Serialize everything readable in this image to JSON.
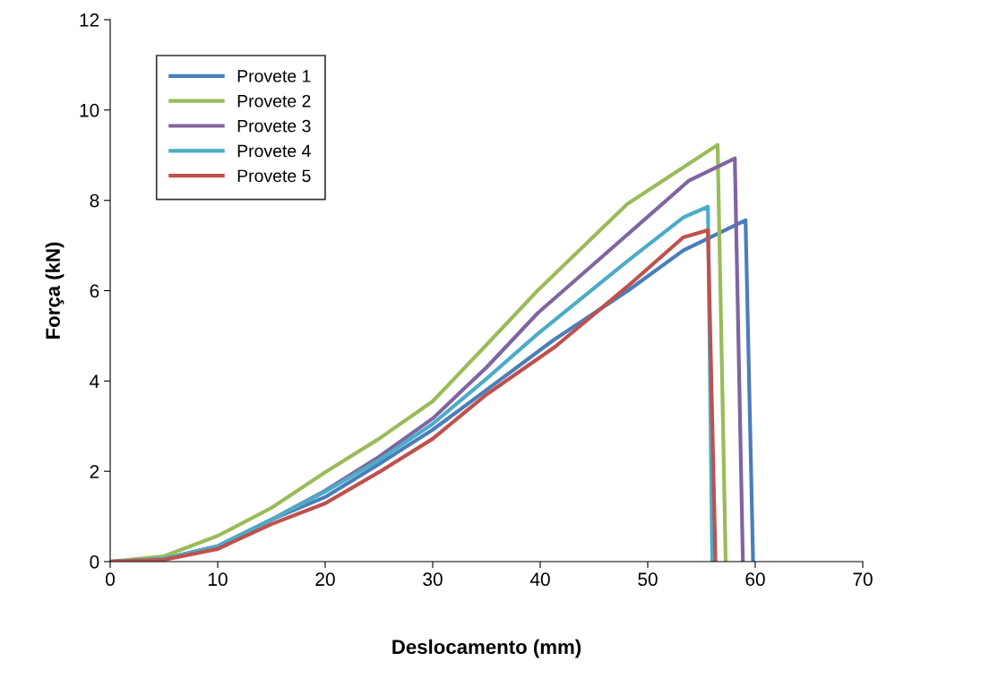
{
  "chart_data": {
    "type": "line",
    "xlabel": "Deslocamento (mm)",
    "ylabel": "Força (kN)",
    "xlim": [
      0,
      70
    ],
    "xticks": [
      0,
      10,
      20,
      30,
      40,
      50,
      60,
      70
    ],
    "ylim": [
      0,
      12
    ],
    "yticks": [
      0,
      2,
      4,
      6,
      8,
      10,
      12
    ],
    "grid": false,
    "legend": "top left",
    "marker": "none",
    "line_style": "solid",
    "series": [
      {
        "name": "Provete 1",
        "color": "#4a7ebb",
        "x": [
          0,
          5,
          10,
          15,
          20,
          25,
          30,
          35,
          41.2,
          48.1,
          53.3,
          55.8,
          59.1,
          59.8
        ],
        "values": [
          0,
          0.06,
          0.34,
          0.93,
          1.43,
          2.16,
          2.92,
          3.8,
          4.9,
          5.99,
          6.89,
          7.18,
          7.56,
          0
        ]
      },
      {
        "name": "Provete 2",
        "color": "#9bbb59",
        "x": [
          0,
          5,
          10,
          15,
          20,
          25,
          30,
          35,
          39.75,
          48.1,
          56.5,
          57.25
        ],
        "values": [
          0,
          0.12,
          0.57,
          1.19,
          1.98,
          2.72,
          3.55,
          4.8,
          6.0,
          7.92,
          9.23,
          0
        ]
      },
      {
        "name": "Provete 3",
        "color": "#8064a2",
        "x": [
          0,
          5,
          10,
          15,
          20,
          25,
          30,
          35,
          39.75,
          48.1,
          53.8,
          58.1,
          58.85
        ],
        "values": [
          0,
          0.06,
          0.34,
          0.93,
          1.57,
          2.32,
          3.17,
          4.3,
          5.5,
          7.24,
          8.43,
          8.93,
          0
        ]
      },
      {
        "name": "Provete 4",
        "color": "#4bacc6",
        "x": [
          0,
          5,
          10,
          15,
          20,
          25,
          30,
          35,
          39.75,
          48.1,
          53.3,
          55.6,
          56.0
        ],
        "values": [
          0,
          0.06,
          0.34,
          0.93,
          1.55,
          2.25,
          3.05,
          4.05,
          5.04,
          6.65,
          7.62,
          7.86,
          0
        ]
      },
      {
        "name": "Provete 5",
        "color": "#c0504d",
        "x": [
          0,
          5,
          10,
          15,
          20,
          25,
          30,
          35,
          41.4,
          48.1,
          53.3,
          55.6,
          56.3
        ],
        "values": [
          0,
          0.04,
          0.28,
          0.83,
          1.29,
          1.98,
          2.72,
          3.7,
          4.76,
          6.09,
          7.18,
          7.34,
          0
        ]
      }
    ]
  }
}
